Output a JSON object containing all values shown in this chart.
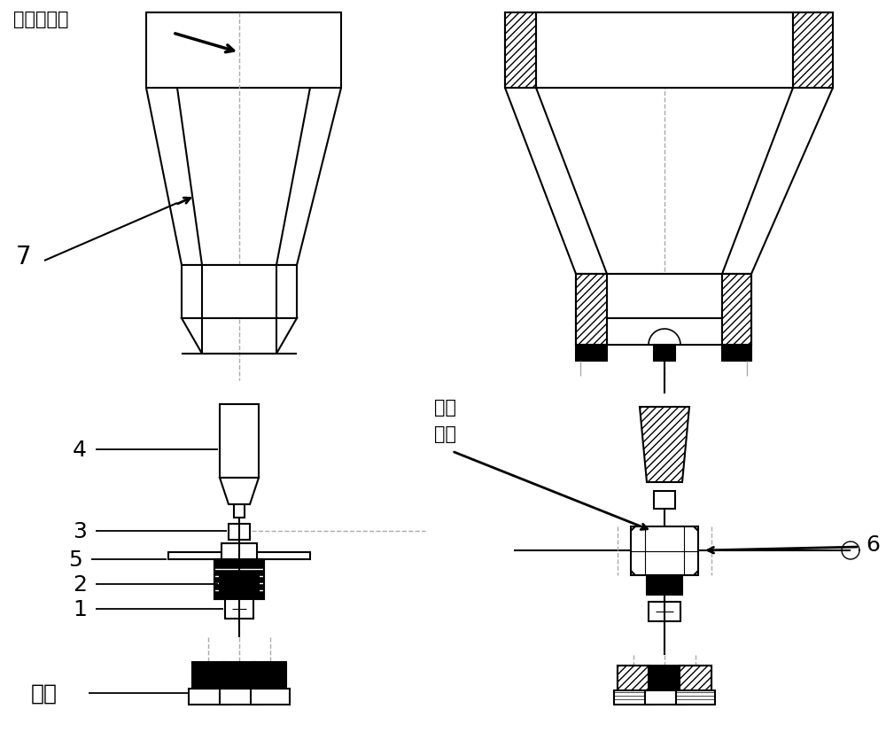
{
  "bg": "#ffffff",
  "lc": "#000000",
  "dc": "#aaaaaa",
  "lw": 1.5,
  "lw2": 1.0,
  "figsize": [
    10.0,
    8.45
  ],
  "dpi": 100,
  "labels": {
    "yuan_xing": "圆形固定环",
    "7": "7",
    "ding_si1": "顶丝",
    "ding_si2": "螺栓",
    "4": "4",
    "3": "3",
    "5": "5",
    "2": "2",
    "1": "1",
    "luo_shuan": "螺栓",
    "6": "6"
  }
}
